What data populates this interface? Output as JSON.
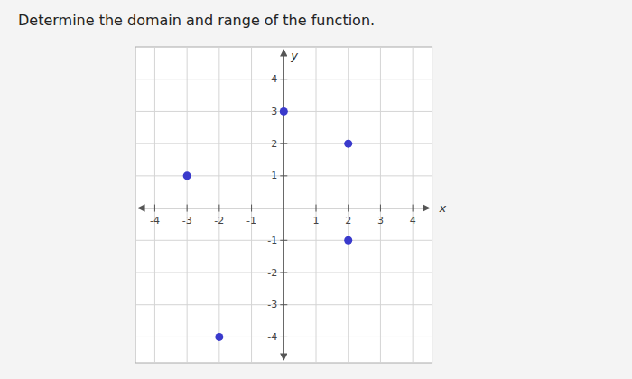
{
  "chart_data": {
    "type": "scatter",
    "title": "Determine the domain and range of the function.",
    "x": [
      -3,
      0,
      2,
      2,
      -2
    ],
    "values": [
      1,
      3,
      2,
      -1,
      -4
    ],
    "color": "#3a3acc",
    "xlim": [
      -4.6,
      4.6
    ],
    "ylim": [
      -4.8,
      5.0
    ],
    "xticks": [
      -4,
      -3,
      -2,
      -1,
      1,
      2,
      3,
      4
    ],
    "yticks": [
      -4,
      -3,
      -2,
      -1,
      1,
      2,
      3,
      4
    ],
    "xlabel": "x",
    "ylabel": "y",
    "grid": true
  }
}
